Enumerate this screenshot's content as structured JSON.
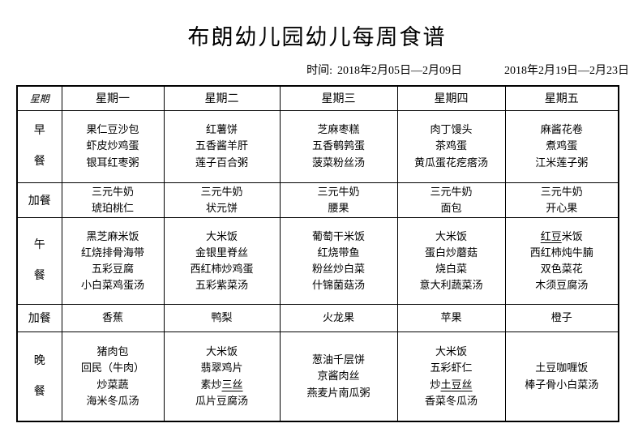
{
  "title": "布朗幼儿园幼儿每周食谱",
  "time": {
    "label": "时间:",
    "range1": "2018年2月05日—2月09日",
    "range2": "2018年2月19日—2月23日"
  },
  "table": {
    "corner_label": "星期",
    "day_headers": [
      "星期一",
      "星期二",
      "星期三",
      "星期四",
      "星期五"
    ],
    "rows": [
      {
        "label": "早餐",
        "cells": [
          "果仁豆沙包\n虾皮炒鸡蛋\n银耳红枣粥",
          "红薯饼\n五香酱羊肝\n莲子百合粥",
          "芝麻枣糕\n五香鹌鹑蛋\n菠菜粉丝汤",
          "肉丁馒头\n茶鸡蛋\n黄瓜蛋花疙瘩汤",
          "麻酱花卷\n煮鸡蛋\n江米莲子粥"
        ]
      },
      {
        "label": "加餐",
        "cells": [
          "三元牛奶\n琥珀桃仁",
          "三元牛奶\n状元饼",
          "三元牛奶\n腰果",
          "三元牛奶\n面包",
          "三元牛奶\n开心果"
        ]
      },
      {
        "label": "午餐",
        "cells": [
          "黑芝麻米饭\n红烧排骨海带\n五彩豆腐\n小白菜鸡蛋汤",
          "大米饭\n金银里脊丝\n西红柿炒鸡蛋\n五彩紫菜汤",
          "葡萄干米饭\n红烧带鱼\n粉丝炒白菜\n什锦菌菇汤",
          "大米饭\n蛋白炒蘑菇\n烧白菜\n意大利蔬菜汤",
          "__红豆__米饭\n西红柿炖牛腩\n双色菜花\n木须豆腐汤"
        ]
      },
      {
        "label": "加餐",
        "cells": [
          "香蕉",
          "鸭梨",
          "火龙果",
          "苹果",
          "橙子"
        ]
      },
      {
        "label": "晚餐",
        "cells": [
          "猪肉包\n回民（牛肉）\n炒菜蔬\n海米冬瓜汤",
          "大米饭\n翡翠鸡片\n素炒__三丝__\n瓜片豆腐汤",
          "葱油千层饼\n京酱肉丝\n燕麦片南瓜粥",
          "大米饭\n五彩虾仁\n炒__土豆丝__\n香菜冬瓜汤",
          "土豆咖喱饭\n棒子骨小白菜汤"
        ]
      }
    ]
  }
}
